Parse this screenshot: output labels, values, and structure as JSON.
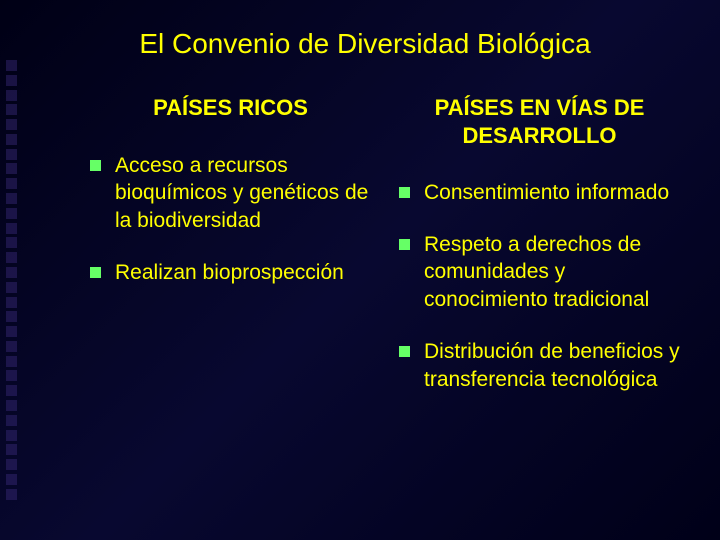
{
  "colors": {
    "background_gradient": [
      "#000015",
      "#080830",
      "#000018"
    ],
    "text": "#ffff00",
    "bullet": "#66ff66",
    "decor_square": "#3a2a7a"
  },
  "typography": {
    "title_fontsize": 28,
    "heading_fontsize": 22,
    "body_fontsize": 21,
    "font_family": "Arial"
  },
  "title": "El Convenio de Diversidad Biológica",
  "left_column": {
    "heading": "PAÍSES RICOS",
    "items": [
      "Acceso a recursos bioquímicos y genéticos de la biodiversidad",
      "Realizan bioprospección"
    ]
  },
  "right_column": {
    "heading": "PAÍSES EN VÍAS DE DESARROLLO",
    "items": [
      "Consentimiento informado",
      "Respeto a derechos de comunidades y conocimiento tradicional",
      "Distribución de beneficios y transferencia tecnológica"
    ]
  }
}
